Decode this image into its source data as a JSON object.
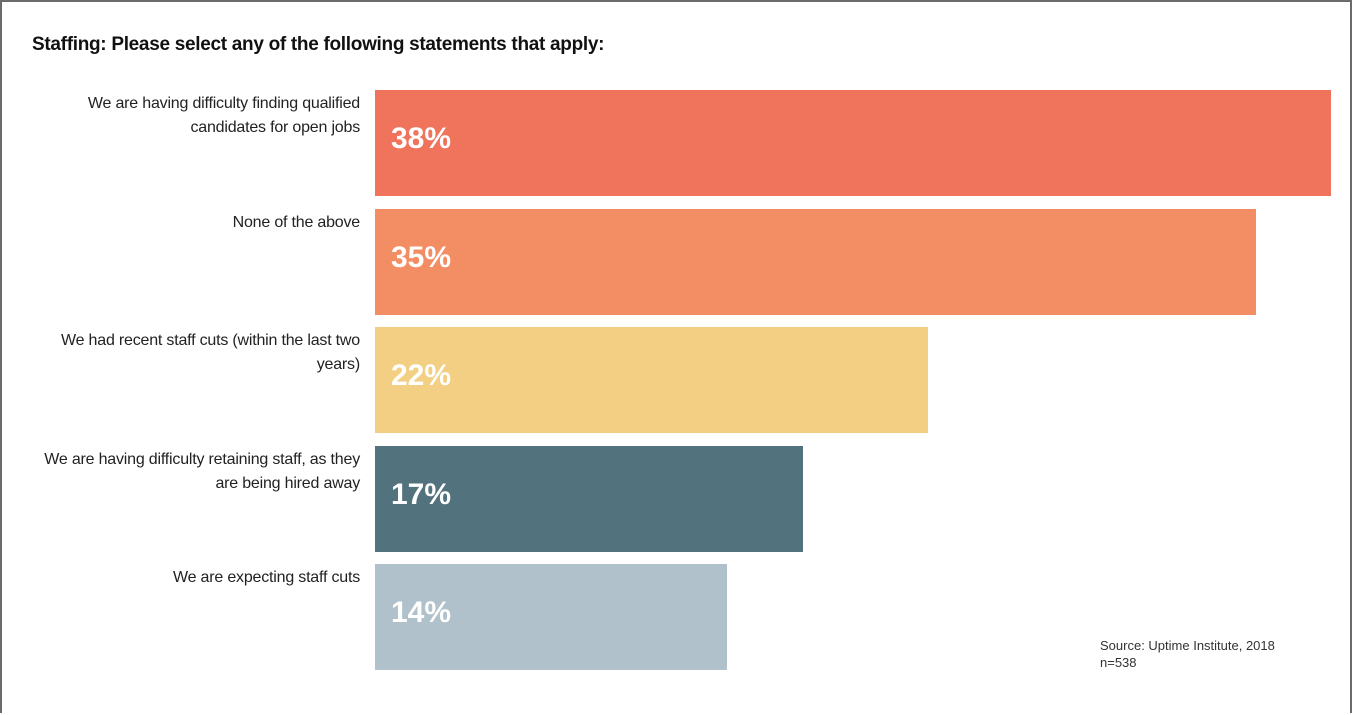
{
  "chart_data": {
    "type": "bar",
    "orientation": "horizontal",
    "title": "Staffing: Please select any of the following statements that apply:",
    "categories": [
      "We are having difficulty finding qualified candidates for open jobs",
      "None of the above",
      "We had recent staff cuts (within the last two years)",
      "We are having difficulty retaining staff, as they are being hired away",
      "We are expecting staff cuts"
    ],
    "values": [
      38,
      35,
      22,
      17,
      14
    ],
    "value_labels": [
      "38%",
      "35%",
      "22%",
      "17%",
      "14%"
    ],
    "colors": [
      "#f0735c",
      "#f38d63",
      "#f2cf82",
      "#52727e",
      "#b0c1cb"
    ],
    "source": "Source: Uptime Institute, 2018",
    "note": "n=538"
  }
}
